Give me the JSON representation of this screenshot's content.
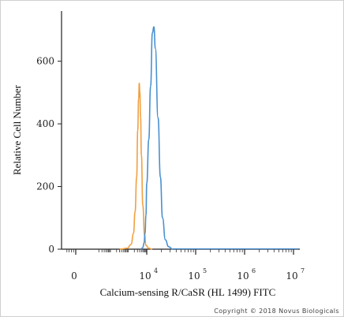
{
  "chart_data": {
    "type": "line",
    "title": "",
    "xlabel": "Calcium-sensing R/CaSR (HL 1499) FITC",
    "ylabel": "Relative Cell Number",
    "x_scale": "biexponential",
    "x_ticks": [
      {
        "value": 0,
        "base": "0",
        "exp": ""
      },
      {
        "value": 10000,
        "base": "10",
        "exp": "4"
      },
      {
        "value": 100000,
        "base": "10",
        "exp": "5"
      },
      {
        "value": 1000000,
        "base": "10",
        "exp": "6"
      },
      {
        "value": 10000000,
        "base": "10",
        "exp": "7"
      }
    ],
    "y_ticks": [
      0,
      200,
      400,
      600
    ],
    "ylim": [
      0,
      760
    ],
    "grid": false,
    "series": [
      {
        "color": "#f0a040",
        "x": [
          300,
          800,
          1300,
          1800,
          2200,
          2700,
          3100,
          3500,
          3800,
          4100,
          4500,
          5000,
          6000,
          7500,
          9000,
          11000,
          13000
        ],
        "y": [
          0,
          3,
          15,
          50,
          120,
          230,
          380,
          480,
          530,
          500,
          420,
          300,
          140,
          45,
          12,
          3,
          0
        ]
      },
      {
        "color": "#4a90d0",
        "x": [
          4500,
          6000,
          7000,
          8000,
          9000,
          10000,
          11000,
          12000,
          13000,
          14000,
          15000,
          17000,
          19000,
          21000,
          24000,
          28000,
          34000
        ],
        "y": [
          0,
          5,
          20,
          50,
          110,
          210,
          350,
          520,
          690,
          710,
          640,
          420,
          230,
          100,
          30,
          8,
          0
        ]
      }
    ]
  },
  "copyright": "Copyright © 2018 Novus Biologicals"
}
